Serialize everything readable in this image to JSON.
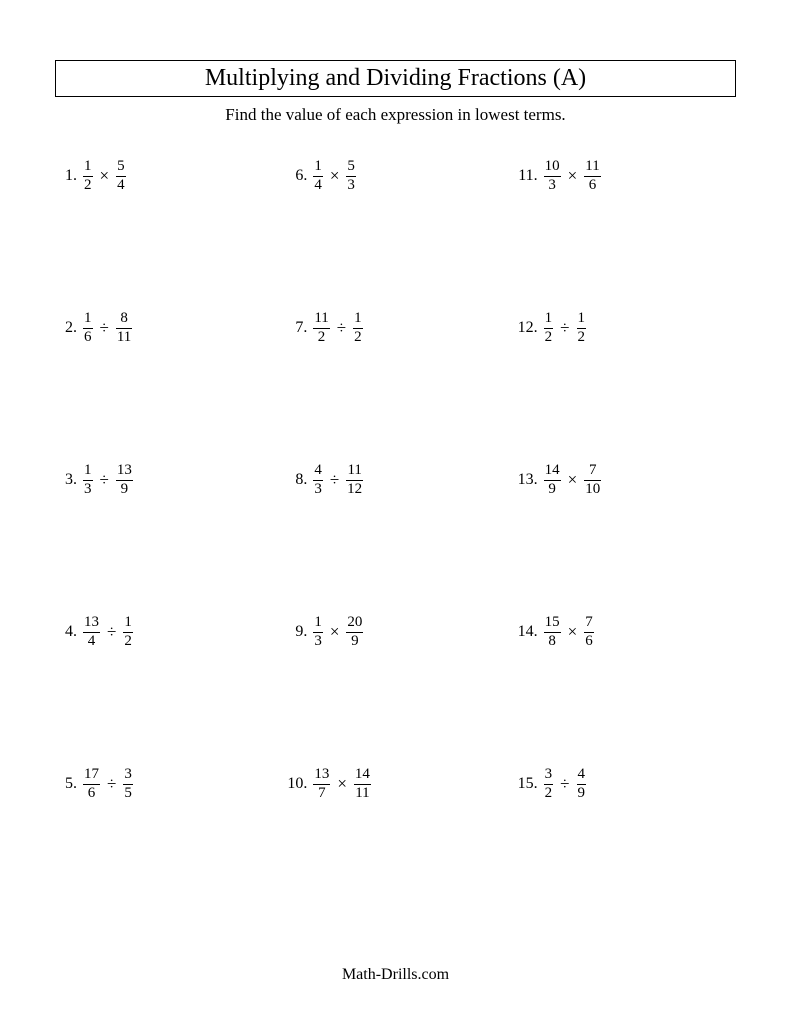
{
  "title": "Multiplying and Dividing Fractions (A)",
  "instructions": "Find the value of each expression in lowest terms.",
  "footer": "Math-Drills.com",
  "operators": {
    "mult": "×",
    "div": "÷"
  },
  "problems": [
    {
      "n": "1.",
      "a_num": "1",
      "a_den": "2",
      "op": "mult",
      "b_num": "5",
      "b_den": "4"
    },
    {
      "n": "2.",
      "a_num": "1",
      "a_den": "6",
      "op": "div",
      "b_num": "8",
      "b_den": "11"
    },
    {
      "n": "3.",
      "a_num": "1",
      "a_den": "3",
      "op": "div",
      "b_num": "13",
      "b_den": "9"
    },
    {
      "n": "4.",
      "a_num": "13",
      "a_den": "4",
      "op": "div",
      "b_num": "1",
      "b_den": "2"
    },
    {
      "n": "5.",
      "a_num": "17",
      "a_den": "6",
      "op": "div",
      "b_num": "3",
      "b_den": "5"
    },
    {
      "n": "6.",
      "a_num": "1",
      "a_den": "4",
      "op": "mult",
      "b_num": "5",
      "b_den": "3"
    },
    {
      "n": "7.",
      "a_num": "11",
      "a_den": "2",
      "op": "div",
      "b_num": "1",
      "b_den": "2"
    },
    {
      "n": "8.",
      "a_num": "4",
      "a_den": "3",
      "op": "div",
      "b_num": "11",
      "b_den": "12"
    },
    {
      "n": "9.",
      "a_num": "1",
      "a_den": "3",
      "op": "mult",
      "b_num": "20",
      "b_den": "9"
    },
    {
      "n": "10.",
      "a_num": "13",
      "a_den": "7",
      "op": "mult",
      "b_num": "14",
      "b_den": "11"
    },
    {
      "n": "11.",
      "a_num": "10",
      "a_den": "3",
      "op": "mult",
      "b_num": "11",
      "b_den": "6"
    },
    {
      "n": "12.",
      "a_num": "1",
      "a_den": "2",
      "op": "div",
      "b_num": "1",
      "b_den": "2"
    },
    {
      "n": "13.",
      "a_num": "14",
      "a_den": "9",
      "op": "mult",
      "b_num": "7",
      "b_den": "10"
    },
    {
      "n": "14.",
      "a_num": "15",
      "a_den": "8",
      "op": "mult",
      "b_num": "7",
      "b_den": "6"
    },
    {
      "n": "15.",
      "a_num": "3",
      "a_den": "2",
      "op": "div",
      "b_num": "4",
      "b_den": "9"
    }
  ]
}
